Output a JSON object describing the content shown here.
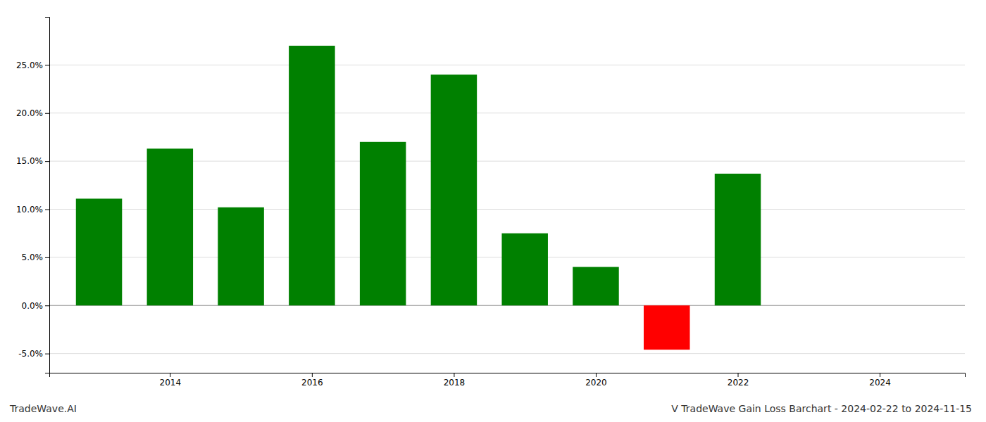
{
  "chart_data": {
    "type": "bar",
    "title": "V TradeWave Gain Loss Barchart - 2024-02-22 to 2024-11-15",
    "annotations": [
      "TradeWave.AI"
    ],
    "x": [
      2013,
      2014,
      2015,
      2016,
      2017,
      2018,
      2019,
      2020,
      2021,
      2022,
      2023
    ],
    "values": [
      0.111,
      0.163,
      0.102,
      0.27,
      0.17,
      0.24,
      0.075,
      0.04,
      -0.046,
      0.137,
      0.0
    ],
    "colors": [
      "#008000",
      "#008000",
      "#008000",
      "#008000",
      "#008000",
      "#008000",
      "#008000",
      "#008000",
      "#ff0000",
      "#008000",
      "#008000"
    ],
    "xlim": [
      2012.3,
      2025.2
    ],
    "xticks": [
      2014,
      2016,
      2018,
      2020,
      2022,
      2024
    ],
    "ylim": [
      -0.07,
      0.3
    ],
    "yticks": [
      {
        "value": -0.05,
        "label": "-5.0%"
      },
      {
        "value": 0.0,
        "label": "0.0%"
      },
      {
        "value": 0.05,
        "label": "5.0%"
      },
      {
        "value": 0.1,
        "label": "10.0%"
      },
      {
        "value": 0.15,
        "label": "15.0%"
      },
      {
        "value": 0.2,
        "label": "20.0%"
      },
      {
        "value": 0.25,
        "label": "25.0%"
      }
    ],
    "grid": true
  }
}
